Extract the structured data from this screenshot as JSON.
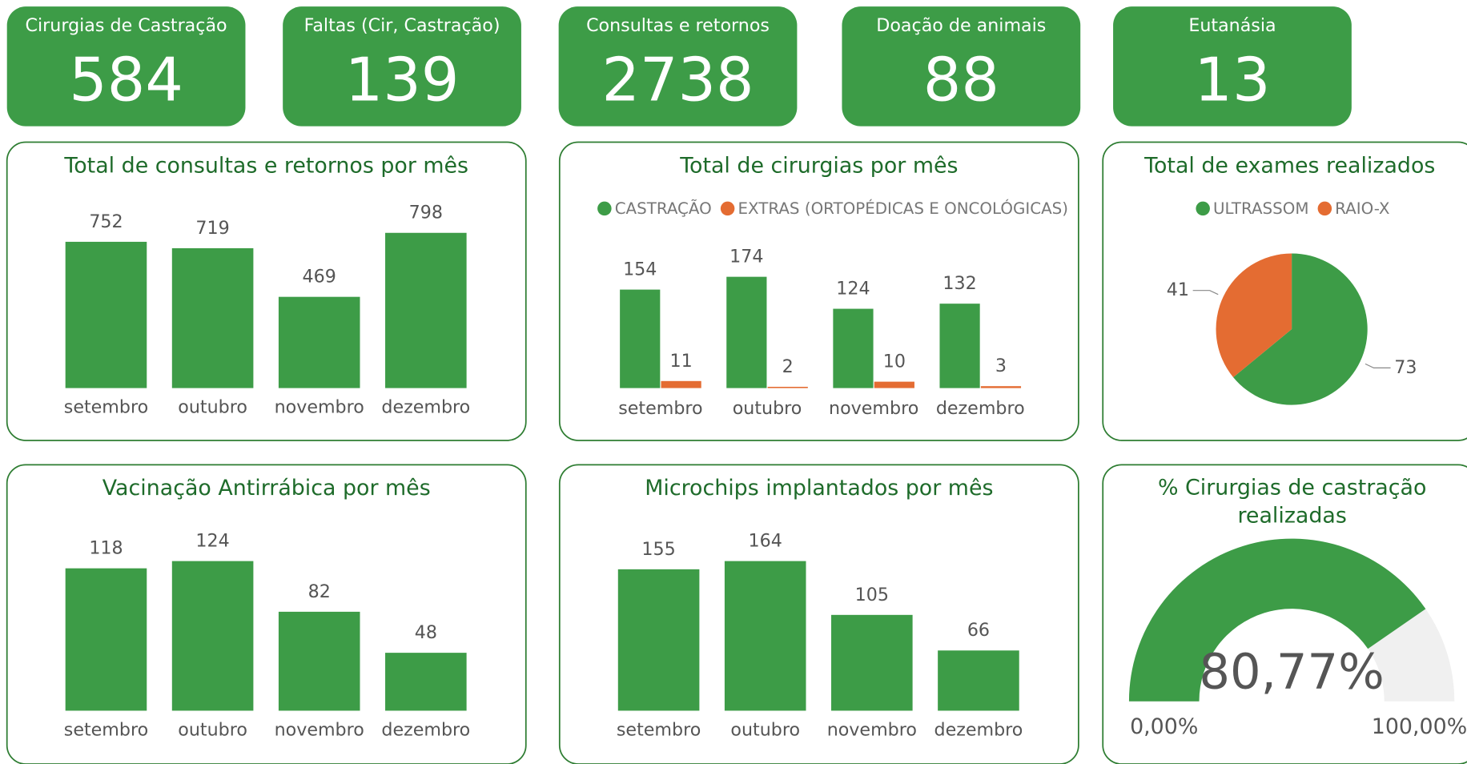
{
  "card_color": "#3d9c47",
  "cards": [
    {
      "label": "Cirurgias de Castração",
      "value": 584
    },
    {
      "label": "Faltas (Cir, Castração)",
      "value": 139
    },
    {
      "label": "Consultas e retornos",
      "value": 2738
    },
    {
      "label": "Doação de animais",
      "value": 88
    },
    {
      "label": "Eutanásia",
      "value": 13
    }
  ],
  "chart_data": [
    {
      "type": "bar",
      "title": "Total de consultas e retornos por mês",
      "categories": [
        "setembro",
        "outubro",
        "novembro",
        "dezembro"
      ],
      "values": [
        752,
        719,
        469,
        798
      ],
      "color": "#3d9c47"
    },
    {
      "type": "grouped",
      "title": "Total de cirurgias por mês",
      "categories": [
        "setembro",
        "outubro",
        "novembro",
        "dezembro"
      ],
      "legend": "top",
      "series": [
        {
          "name": "CASTRAÇÃO",
          "color": "#3d9c47",
          "values": [
            154,
            174,
            124,
            132
          ]
        },
        {
          "name": "EXTRAS (ORTOPÉDICAS E ONCOLÓGICAS)",
          "color": "#e46c32",
          "values": [
            11,
            2,
            10,
            3
          ]
        }
      ]
    },
    {
      "type": "pie",
      "title": "Total de exames realizados",
      "categories": [
        "ULTRASSOM",
        "RAIO-X"
      ],
      "values": [
        73,
        41
      ],
      "colors": [
        "#3d9c47",
        "#e46c32"
      ],
      "legend": "top"
    },
    {
      "type": "bar",
      "title": "Vacinação Antirrábica por mês",
      "categories": [
        "setembro",
        "outubro",
        "novembro",
        "dezembro"
      ],
      "values": [
        118,
        124,
        82,
        48
      ],
      "color": "#3d9c47"
    },
    {
      "type": "bar",
      "title": "Microchips implantados por mês",
      "categories": [
        "setembro",
        "outubro",
        "novembro",
        "dezembro"
      ],
      "values": [
        155,
        164,
        105,
        66
      ],
      "color": "#3d9c47"
    },
    {
      "type": "gauge",
      "title": "% Cirurgias de castração realizadas",
      "values": [
        80.77
      ],
      "value_labels": [
        "80,77%"
      ],
      "color": "#3d9c47",
      "track_color": "#f0f0f0",
      "ylim": [
        0,
        100
      ],
      "yticks": [
        {
          "value": 0,
          "label": "0,00%"
        },
        {
          "value": 100,
          "label": "100,00%"
        }
      ]
    }
  ]
}
